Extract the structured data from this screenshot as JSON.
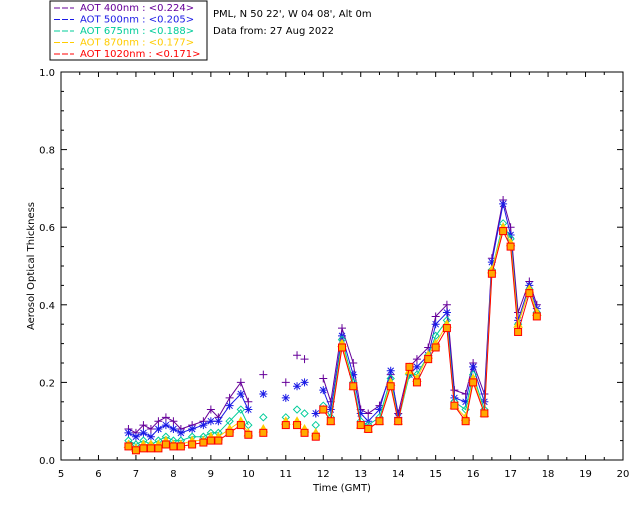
{
  "chart_data": {
    "type": "scatter",
    "title": "",
    "info_lines": [
      "PML, N 50 22', W 04 08', Alt 0m",
      "Data from: 27 Aug 2022"
    ],
    "xlabel": "Time (GMT)",
    "ylabel": "Aerosol Optical Thickness",
    "xlim": [
      5,
      20
    ],
    "ylim": [
      0,
      1.0
    ],
    "x_ticks": [
      "5",
      "6",
      "7",
      "8",
      "9",
      "10",
      "11",
      "12",
      "13",
      "14",
      "15",
      "16",
      "17",
      "18",
      "19",
      "20"
    ],
    "y_ticks": [
      "0.0",
      "0.2",
      "0.4",
      "0.6",
      "0.8",
      "1.0"
    ],
    "legend_position": "top-left, outside plot",
    "series": [
      {
        "name": "AOT  400nm : <0.224>",
        "color": "#660099",
        "marker": "plus",
        "x": [
          6.8,
          7.0,
          7.2,
          7.4,
          7.6,
          7.8,
          8.0,
          8.2,
          8.5,
          8.8,
          9.0,
          9.2,
          9.5,
          9.8,
          10.0,
          10.4,
          11.0,
          11.3,
          11.5,
          11.8,
          12.0,
          12.2,
          12.5,
          12.8,
          13.0,
          13.2,
          13.5,
          13.8,
          14.0,
          14.3,
          14.5,
          14.8,
          15.0,
          15.3,
          15.5,
          15.8,
          16.0,
          16.3,
          16.5,
          16.8,
          17.0,
          17.2,
          17.5,
          17.7
        ],
        "y": [
          0.08,
          0.07,
          0.09,
          0.08,
          0.1,
          0.11,
          0.1,
          0.08,
          0.09,
          0.1,
          0.13,
          0.11,
          0.16,
          0.2,
          0.15,
          0.22,
          0.2,
          0.27,
          0.26,
          0.12,
          0.21,
          0.15,
          0.34,
          0.25,
          0.13,
          0.12,
          0.14,
          0.22,
          0.12,
          0.24,
          0.26,
          0.29,
          0.37,
          0.4,
          0.18,
          0.17,
          0.25,
          0.17,
          0.52,
          0.67,
          0.6,
          0.38,
          0.46,
          0.4
        ]
      },
      {
        "name": "AOT  500nm : <0.205>",
        "color": "#1a1ae6",
        "marker": "asterisk",
        "x": [
          6.8,
          7.0,
          7.2,
          7.4,
          7.6,
          7.8,
          8.0,
          8.2,
          8.5,
          8.8,
          9.0,
          9.2,
          9.5,
          9.8,
          10.0,
          10.4,
          11.0,
          11.3,
          11.5,
          11.8,
          12.0,
          12.2,
          12.5,
          12.8,
          13.0,
          13.2,
          13.5,
          13.8,
          14.0,
          14.3,
          14.5,
          14.8,
          15.0,
          15.3,
          15.5,
          15.8,
          16.0,
          16.3,
          16.5,
          16.8,
          17.0,
          17.2,
          17.5,
          17.7
        ],
        "y": [
          0.07,
          0.06,
          0.07,
          0.06,
          0.08,
          0.09,
          0.08,
          0.07,
          0.08,
          0.09,
          0.1,
          0.1,
          0.14,
          0.17,
          0.13,
          0.17,
          0.16,
          0.19,
          0.2,
          0.12,
          0.18,
          0.13,
          0.32,
          0.22,
          0.12,
          0.1,
          0.13,
          0.23,
          0.11,
          0.22,
          0.24,
          0.27,
          0.35,
          0.38,
          0.16,
          0.15,
          0.24,
          0.15,
          0.51,
          0.66,
          0.58,
          0.36,
          0.45,
          0.39
        ]
      },
      {
        "name": "AOT  675nm : <0.188>",
        "color": "#00cc99",
        "marker": "diamond",
        "x": [
          6.8,
          7.0,
          7.2,
          7.4,
          7.6,
          7.8,
          8.0,
          8.2,
          8.5,
          8.8,
          9.0,
          9.2,
          9.5,
          9.8,
          10.0,
          10.4,
          11.0,
          11.3,
          11.5,
          11.8,
          12.0,
          12.2,
          12.5,
          12.8,
          13.0,
          13.2,
          13.5,
          13.8,
          14.0,
          14.3,
          14.5,
          14.8,
          15.0,
          15.3,
          15.5,
          15.8,
          16.0,
          16.3,
          16.5,
          16.8,
          17.0,
          17.2,
          17.5,
          17.7
        ],
        "y": [
          0.05,
          0.04,
          0.05,
          0.04,
          0.05,
          0.06,
          0.05,
          0.05,
          0.06,
          0.06,
          0.07,
          0.07,
          0.1,
          0.13,
          0.09,
          0.11,
          0.11,
          0.13,
          0.12,
          0.09,
          0.14,
          0.11,
          0.31,
          0.2,
          0.1,
          0.09,
          0.11,
          0.21,
          0.1,
          0.22,
          0.22,
          0.27,
          0.32,
          0.36,
          0.15,
          0.13,
          0.22,
          0.13,
          0.49,
          0.61,
          0.57,
          0.35,
          0.44,
          0.38
        ]
      },
      {
        "name": "AOT  870nm : <0.177>",
        "color": "#ffcc00",
        "marker": "triangle",
        "x": [
          6.8,
          7.0,
          7.2,
          7.4,
          7.6,
          7.8,
          8.0,
          8.2,
          8.5,
          8.8,
          9.0,
          9.2,
          9.5,
          9.8,
          10.0,
          10.4,
          11.0,
          11.3,
          11.5,
          11.8,
          12.0,
          12.2,
          12.5,
          12.8,
          13.0,
          13.2,
          13.5,
          13.8,
          14.0,
          14.3,
          14.5,
          14.8,
          15.0,
          15.3,
          15.5,
          15.8,
          16.0,
          16.3,
          16.5,
          16.8,
          17.0,
          17.2,
          17.5,
          17.7
        ],
        "y": [
          0.04,
          0.03,
          0.04,
          0.04,
          0.04,
          0.05,
          0.04,
          0.04,
          0.05,
          0.05,
          0.06,
          0.06,
          0.08,
          0.1,
          0.07,
          0.08,
          0.1,
          0.1,
          0.08,
          0.07,
          0.13,
          0.1,
          0.3,
          0.19,
          0.09,
          0.08,
          0.1,
          0.2,
          0.1,
          0.23,
          0.21,
          0.27,
          0.3,
          0.35,
          0.14,
          0.11,
          0.21,
          0.12,
          0.49,
          0.6,
          0.56,
          0.35,
          0.44,
          0.38
        ]
      },
      {
        "name": "AOT 1020nm : <0.171>",
        "color": "#ff0000",
        "marker": "square",
        "x": [
          6.8,
          7.0,
          7.2,
          7.4,
          7.6,
          7.8,
          8.0,
          8.2,
          8.5,
          8.8,
          9.0,
          9.2,
          9.5,
          9.8,
          10.0,
          10.4,
          11.0,
          11.3,
          11.5,
          11.8,
          12.0,
          12.2,
          12.5,
          12.8,
          13.0,
          13.2,
          13.5,
          13.8,
          14.0,
          14.3,
          14.5,
          14.8,
          15.0,
          15.3,
          15.5,
          15.8,
          16.0,
          16.3,
          16.5,
          16.8,
          17.0,
          17.2,
          17.5,
          17.7
        ],
        "y": [
          0.035,
          0.025,
          0.03,
          0.03,
          0.03,
          0.04,
          0.035,
          0.035,
          0.04,
          0.045,
          0.05,
          0.05,
          0.07,
          0.09,
          0.065,
          0.07,
          0.09,
          0.09,
          0.07,
          0.06,
          0.13,
          0.1,
          0.29,
          0.19,
          0.09,
          0.08,
          0.1,
          0.19,
          0.1,
          0.24,
          0.2,
          0.26,
          0.29,
          0.34,
          0.14,
          0.1,
          0.2,
          0.12,
          0.48,
          0.59,
          0.55,
          0.33,
          0.43,
          0.37
        ]
      }
    ]
  }
}
